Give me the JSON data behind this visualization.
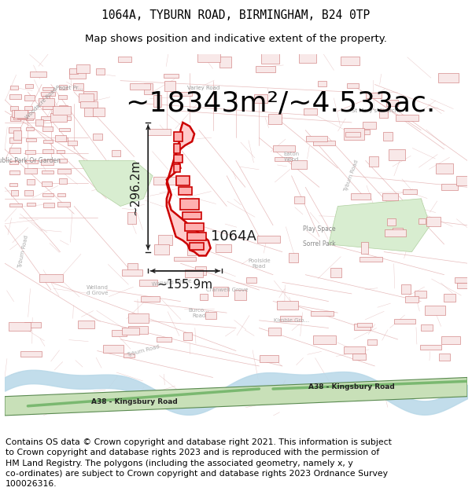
{
  "title_line1": "1064A, TYBURN ROAD, BIRMINGHAM, B24 0TP",
  "title_line2": "Map shows position and indicative extent of the property.",
  "area_text": "~18343m²/~4.533ac.",
  "label_1064A": "1064A",
  "dim_vertical": "~296.2m",
  "dim_horizontal": "~155.9m",
  "footer_lines": [
    "Contains OS data © Crown copyright and database right 2021. This information is subject",
    "to Crown copyright and database rights 2023 and is reproduced with the permission of",
    "HM Land Registry. The polygons (including the associated geometry, namely x, y",
    "co-ordinates) are subject to Crown copyright and database rights 2023 Ordnance Survey",
    "100026316."
  ],
  "title_fontsize": 10.5,
  "subtitle_fontsize": 9.5,
  "area_fontsize": 26,
  "label_fontsize": 13,
  "dim_fontsize": 11,
  "footer_fontsize": 7.8,
  "map_bg_color": "#f7f4f0",
  "fig_bg_color": "#ffffff",
  "map_border_color": "#aaaaaa",
  "road_color": "#e8b0b0",
  "building_edge_color": "#d08080",
  "building_face_color": "#f5e0e0",
  "property_edge_color": "#cc0000",
  "property_face_color": "#ffcccc",
  "green_area_color": "#d8edc8",
  "green_road_color": "#7ab870",
  "green_road_edge": "#4a7a44",
  "blue_water_color": "#b8d8e8",
  "dim_arrow_color": "#1a1a1a",
  "text_color": "#000000",
  "label_color": "#1a1a1a",
  "road_text_color": "#222222",
  "map_label_color": "#888888"
}
